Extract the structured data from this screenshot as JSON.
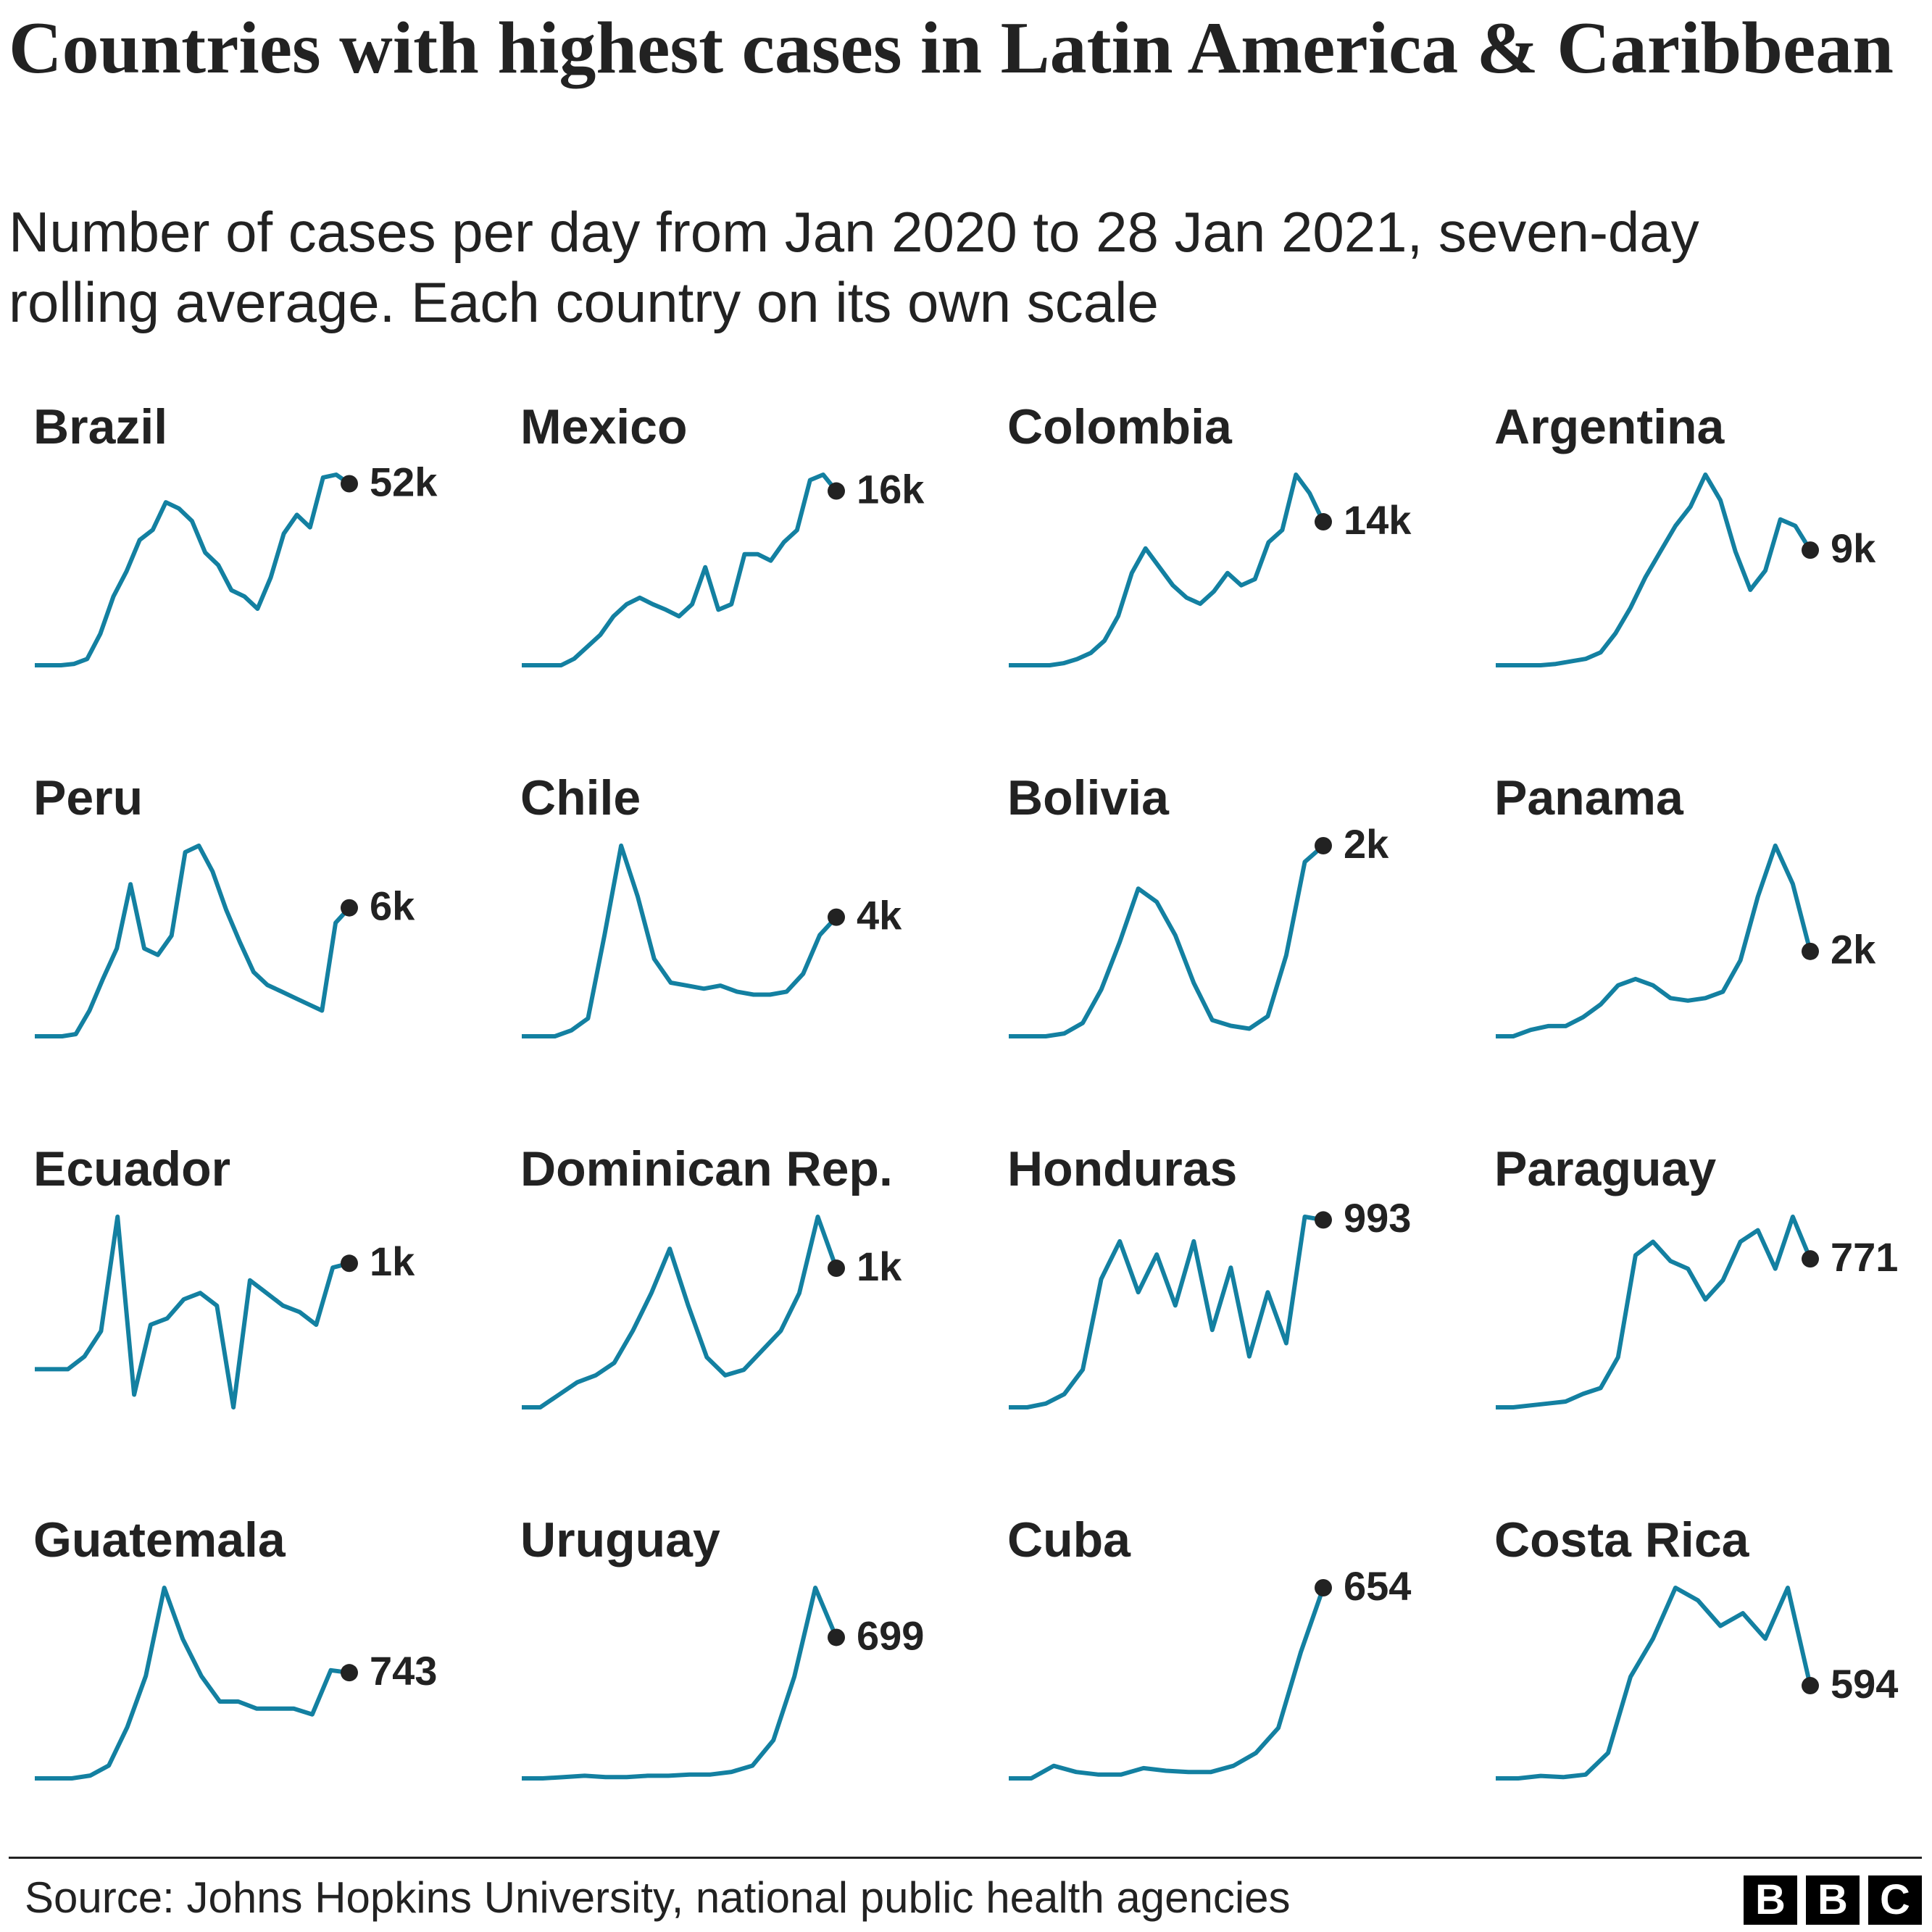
{
  "title": "Countries with highest cases in Latin America & Caribbean",
  "subtitle": "Number of cases per day from Jan 2020 to 28 Jan 2021, seven-day rolling average. Each country on its own scale",
  "source": "Source: Johns Hopkins University, national public health agencies",
  "logo": [
    "B",
    "B",
    "C"
  ],
  "chart_data": [
    {
      "type": "line",
      "title": "Brazil",
      "color": "#1380a1",
      "values": [
        0,
        0,
        0,
        400,
        1800,
        9000,
        19700,
        26900,
        35900,
        38800,
        46700,
        44900,
        41300,
        32300,
        28700,
        21500,
        19700,
        16200,
        25100,
        37700,
        43100,
        39500,
        53800,
        54600,
        52000
      ],
      "value_labels": [
        null,
        null,
        null,
        null,
        null,
        null,
        null,
        null,
        null,
        null,
        null,
        null,
        null,
        null,
        null,
        null,
        null,
        null,
        null,
        null,
        null,
        null,
        null,
        null,
        "52k"
      ]
    },
    {
      "type": "line",
      "title": "Mexico",
      "color": "#1380a1",
      "values": [
        0,
        0,
        0,
        0,
        600,
        1700,
        2800,
        4500,
        5600,
        6200,
        5600,
        5100,
        4500,
        5600,
        9000,
        5100,
        5600,
        10200,
        10200,
        9600,
        11300,
        12400,
        17000,
        17500,
        16000
      ],
      "value_labels": [
        null,
        null,
        null,
        null,
        null,
        null,
        null,
        null,
        null,
        null,
        null,
        null,
        null,
        null,
        null,
        null,
        null,
        null,
        null,
        null,
        null,
        null,
        null,
        null,
        "16k"
      ]
    },
    {
      "type": "line",
      "title": "Colombia",
      "color": "#1380a1",
      "values": [
        0,
        0,
        0,
        0,
        200,
        600,
        1200,
        2400,
        4800,
        9000,
        11400,
        9600,
        7800,
        6600,
        6000,
        7200,
        9000,
        7800,
        8400,
        12000,
        13200,
        18600,
        16800,
        14000
      ],
      "value_labels": [
        null,
        null,
        null,
        null,
        null,
        null,
        null,
        null,
        null,
        null,
        null,
        null,
        null,
        null,
        null,
        null,
        null,
        null,
        null,
        null,
        null,
        null,
        null,
        "14k"
      ]
    },
    {
      "type": "line",
      "title": "Argentina",
      "color": "#1380a1",
      "values": [
        0,
        0,
        0,
        0,
        100,
        300,
        500,
        1000,
        2500,
        4500,
        6900,
        8900,
        10900,
        12400,
        14900,
        12900,
        8900,
        5900,
        7400,
        11400,
        10900,
        9000
      ],
      "value_labels": [
        null,
        null,
        null,
        null,
        null,
        null,
        null,
        null,
        null,
        null,
        null,
        null,
        null,
        null,
        null,
        null,
        null,
        null,
        null,
        null,
        null,
        "9k"
      ]
    },
    {
      "type": "line",
      "title": "Peru",
      "color": "#1380a1",
      "values": [
        0,
        0,
        0,
        100,
        1200,
        2700,
        4100,
        7100,
        4100,
        3800,
        4700,
        8600,
        8900,
        7700,
        5900,
        4400,
        3000,
        2400,
        2100,
        1800,
        1500,
        1200,
        5300,
        6000
      ],
      "value_labels": [
        null,
        null,
        null,
        null,
        null,
        null,
        null,
        null,
        null,
        null,
        null,
        null,
        null,
        null,
        null,
        null,
        null,
        null,
        null,
        null,
        null,
        null,
        null,
        "6k"
      ]
    },
    {
      "type": "line",
      "title": "Chile",
      "color": "#1380a1",
      "values": [
        0,
        0,
        0,
        200,
        600,
        3400,
        6400,
        4700,
        2600,
        1800,
        1700,
        1600,
        1700,
        1500,
        1400,
        1400,
        1500,
        2100,
        3400,
        4000
      ],
      "value_labels": [
        null,
        null,
        null,
        null,
        null,
        null,
        null,
        null,
        null,
        null,
        null,
        null,
        null,
        null,
        null,
        null,
        null,
        null,
        null,
        "4k"
      ]
    },
    {
      "type": "line",
      "title": "Bolivia",
      "color": "#1380a1",
      "values": [
        0,
        0,
        0,
        30,
        140,
        490,
        990,
        1550,
        1410,
        1060,
        560,
        170,
        110,
        80,
        210,
        850,
        1830,
        2000
      ],
      "value_labels": [
        null,
        null,
        null,
        null,
        null,
        null,
        null,
        null,
        null,
        null,
        null,
        null,
        null,
        null,
        null,
        null,
        null,
        "2k"
      ]
    },
    {
      "type": "line",
      "title": "Panama",
      "color": "#1380a1",
      "values": [
        0,
        0,
        150,
        240,
        240,
        450,
        750,
        1200,
        1350,
        1200,
        900,
        840,
        900,
        1050,
        1790,
        3290,
        4490,
        3590,
        2000
      ],
      "value_labels": [
        null,
        null,
        null,
        null,
        null,
        null,
        null,
        null,
        null,
        null,
        null,
        null,
        null,
        null,
        null,
        null,
        null,
        null,
        "2k"
      ]
    },
    {
      "type": "line",
      "title": "Ecuador",
      "color": "#1380a1",
      "values": [
        0,
        0,
        0,
        120,
        360,
        1440,
        -240,
        420,
        480,
        660,
        720,
        600,
        -360,
        840,
        720,
        600,
        540,
        420,
        960,
        1000
      ],
      "value_labels": [
        null,
        null,
        null,
        null,
        null,
        null,
        null,
        null,
        null,
        null,
        null,
        null,
        null,
        null,
        null,
        null,
        null,
        null,
        null,
        "1k"
      ]
    },
    {
      "type": "line",
      "title": "Dominican Rep.",
      "color": "#1380a1",
      "values": [
        0,
        0,
        90,
        180,
        230,
        320,
        550,
        820,
        1140,
        730,
        360,
        230,
        270,
        410,
        550,
        820,
        1370,
        1000
      ],
      "value_labels": [
        null,
        null,
        null,
        null,
        null,
        null,
        null,
        null,
        null,
        null,
        null,
        null,
        null,
        null,
        null,
        null,
        null,
        "1k"
      ]
    },
    {
      "type": "line",
      "title": "Honduras",
      "color": "#1380a1",
      "values": [
        0,
        0,
        20,
        70,
        200,
        680,
        880,
        610,
        810,
        540,
        880,
        410,
        740,
        270,
        610,
        340,
        1010,
        993
      ],
      "value_labels": [
        null,
        null,
        null,
        null,
        null,
        null,
        null,
        null,
        null,
        null,
        null,
        null,
        null,
        null,
        null,
        null,
        null,
        "993"
      ]
    },
    {
      "type": "line",
      "title": "Paraguay",
      "color": "#1380a1",
      "values": [
        0,
        0,
        10,
        20,
        30,
        70,
        100,
        260,
        790,
        860,
        760,
        720,
        560,
        660,
        860,
        920,
        720,
        990,
        771
      ],
      "value_labels": [
        null,
        null,
        null,
        null,
        null,
        null,
        null,
        null,
        null,
        null,
        null,
        null,
        null,
        null,
        null,
        null,
        null,
        null,
        "771"
      ]
    },
    {
      "type": "line",
      "title": "Guatemala",
      "color": "#1380a1",
      "values": [
        0,
        0,
        0,
        20,
        90,
        360,
        720,
        1340,
        980,
        720,
        540,
        540,
        490,
        490,
        490,
        450,
        760,
        743
      ],
      "value_labels": [
        null,
        null,
        null,
        null,
        null,
        null,
        null,
        null,
        null,
        null,
        null,
        null,
        null,
        null,
        null,
        null,
        null,
        "743"
      ]
    },
    {
      "type": "line",
      "title": "Uruguay",
      "color": "#1380a1",
      "values": [
        0,
        0,
        6,
        13,
        6,
        6,
        13,
        13,
        19,
        19,
        32,
        63,
        189,
        504,
        945,
        699
      ],
      "value_labels": [
        null,
        null,
        null,
        null,
        null,
        null,
        null,
        null,
        null,
        null,
        null,
        null,
        null,
        null,
        null,
        "699"
      ]
    },
    {
      "type": "line",
      "title": "Cuba",
      "color": "#1380a1",
      "values": [
        0,
        0,
        43,
        22,
        13,
        13,
        35,
        26,
        22,
        22,
        43,
        87,
        173,
        433,
        654
      ],
      "value_labels": [
        null,
        null,
        null,
        null,
        null,
        null,
        null,
        null,
        null,
        null,
        null,
        null,
        null,
        null,
        "654"
      ]
    },
    {
      "type": "line",
      "title": "Costa Rica",
      "color": "#1380a1",
      "values": [
        0,
        0,
        16,
        8,
        24,
        163,
        651,
        895,
        1221,
        1140,
        977,
        1058,
        895,
        1221,
        594
      ],
      "value_labels": [
        null,
        null,
        null,
        null,
        null,
        null,
        null,
        null,
        null,
        null,
        null,
        null,
        null,
        null,
        "594"
      ]
    }
  ]
}
